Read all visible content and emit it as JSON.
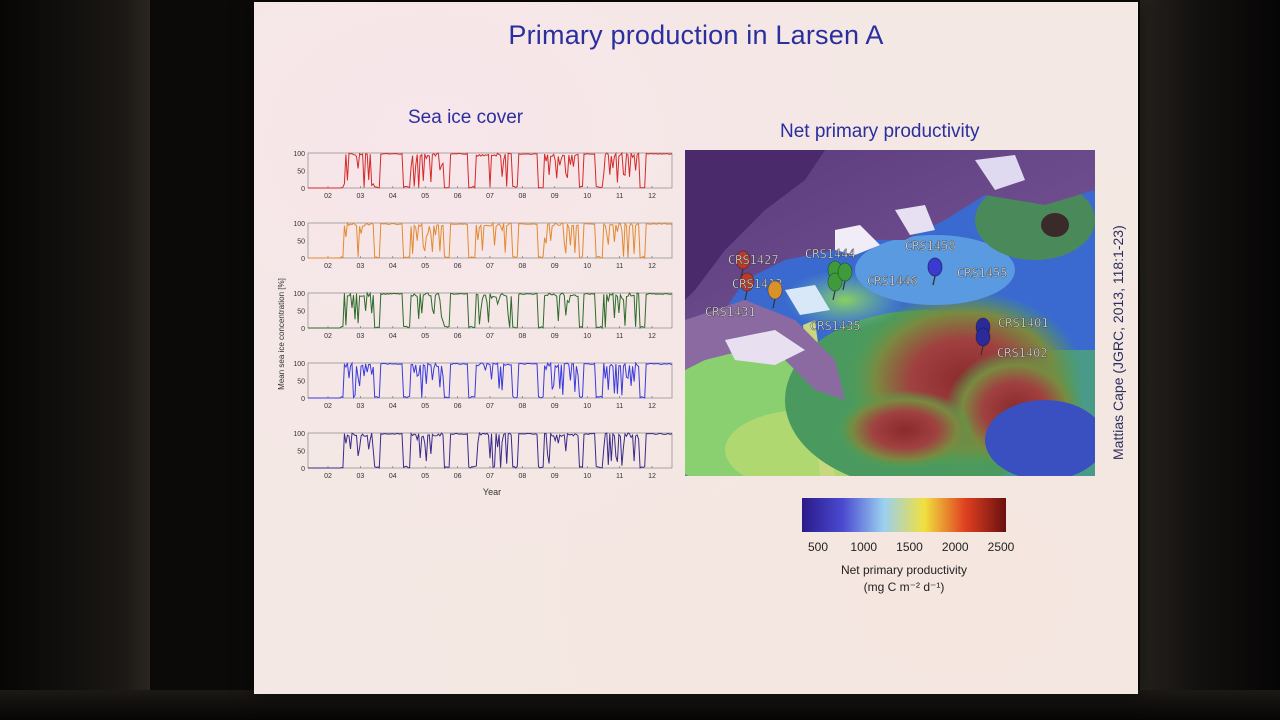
{
  "slide": {
    "title": "Primary production in Larsen A",
    "left_heading": "Sea ice cover",
    "right_heading": "Net primary productivity",
    "credit": "Mattias Cape (JGRC, 2013, 118:1-23)"
  },
  "chart_data": {
    "type": "line",
    "title": "Sea ice cover",
    "ylabel": "Mean sea ice concentration [%]",
    "xlabel": "Year",
    "x_ticks": [
      "02",
      "03",
      "04",
      "05",
      "06",
      "07",
      "08",
      "09",
      "10",
      "11",
      "12"
    ],
    "y_ticks": [
      "100",
      "50",
      "0"
    ],
    "ylim": [
      0,
      100
    ],
    "series": [
      {
        "color": "#d42a2a"
      },
      {
        "color": "#e28a32"
      },
      {
        "color": "#2e6b2a"
      },
      {
        "color": "#3a3ae0"
      },
      {
        "color": "#3a2a8a"
      }
    ]
  },
  "map": {
    "stations": [
      {
        "label": "CRS1427",
        "pin_color": "#b83a2a"
      },
      {
        "label": "CRS1413",
        "pin_color": "#b83a2a"
      },
      {
        "label": "CRS1431",
        "pin_color": "#d9922a"
      },
      {
        "label": "CRS1444",
        "pin_color": "#3e9a3a"
      },
      {
        "label": "CRS1435",
        "pin_color": "#3e9a3a"
      },
      {
        "label": "CRS1446",
        "pin_color": "#3e9a3a"
      },
      {
        "label": "CRS1458",
        "pin_color": "#3a3ad0"
      },
      {
        "label": "CRS1455",
        "pin_color": "#3a3ad0"
      },
      {
        "label": "CRS1401",
        "pin_color": "#2a2a9a"
      },
      {
        "label": "CRS1402",
        "pin_color": "#2a2a9a"
      }
    ]
  },
  "colorbar": {
    "ticks": [
      "500",
      "1000",
      "1500",
      "2000",
      "2500"
    ],
    "label_line1": "Net primary productivity",
    "label_line2": "(mg C m⁻² d⁻¹)",
    "colors": [
      "#2a1a8a",
      "#4a4ad0",
      "#9ad0f0",
      "#f0e040",
      "#e04020",
      "#6a1010"
    ]
  }
}
